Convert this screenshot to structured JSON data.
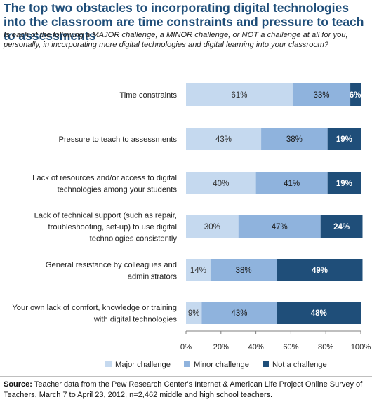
{
  "title": "The top two obstacles to incorporating digital technologies into the classroom are time constraints and pressure to teach to assessments",
  "subtitle": "Is each of the following a MAJOR challenge, a MINOR challenge, or NOT a challenge at all for you, personally, in incorporating more digital technologies and digital learning into your classroom?",
  "source_label": "Source:",
  "source_text": "Teacher data from the Pew Research Center's Internet & American Life Project Online Survey of Teachers, March 7 to April 23, 2012, n=2,462 middle and high school teachers.",
  "colors": {
    "major": "#c5d9ef",
    "minor": "#8fb3dd",
    "not": "#1f4e79"
  },
  "chart_data": {
    "type": "bar",
    "orientation": "horizontal",
    "stacked": true,
    "categories": [
      [
        "Time constraints"
      ],
      [
        "Pressure to teach to assessments"
      ],
      [
        "Lack of resources and/or access to digital",
        "technologies among your students"
      ],
      [
        "Lack of technical support (such as repair,",
        "troubleshooting, set-up) to use digital",
        "technologies consistently"
      ],
      [
        "General resistance by colleagues and",
        "administrators"
      ],
      [
        "Your own lack of comfort, knowledge or training",
        "with digital technologies"
      ]
    ],
    "series": [
      {
        "name": "Major challenge",
        "values": [
          61,
          43,
          40,
          30,
          14,
          9
        ]
      },
      {
        "name": "Minor challenge",
        "values": [
          33,
          38,
          41,
          47,
          38,
          43
        ]
      },
      {
        "name": "Not a challenge",
        "values": [
          6,
          19,
          19,
          24,
          49,
          48
        ]
      }
    ],
    "data_labels": [
      [
        "61%",
        "43%",
        "40%",
        "30%",
        "14%",
        "9%"
      ],
      [
        "33%",
        "38%",
        "41%",
        "47%",
        "38%",
        "43%"
      ],
      [
        "6%",
        "19%",
        "19%",
        "24%",
        "49%",
        "48%"
      ]
    ],
    "x_ticks": [
      "0%",
      "20%",
      "40%",
      "60%",
      "80%",
      "100%"
    ],
    "xlim": [
      0,
      100
    ],
    "legend_position": "bottom"
  }
}
